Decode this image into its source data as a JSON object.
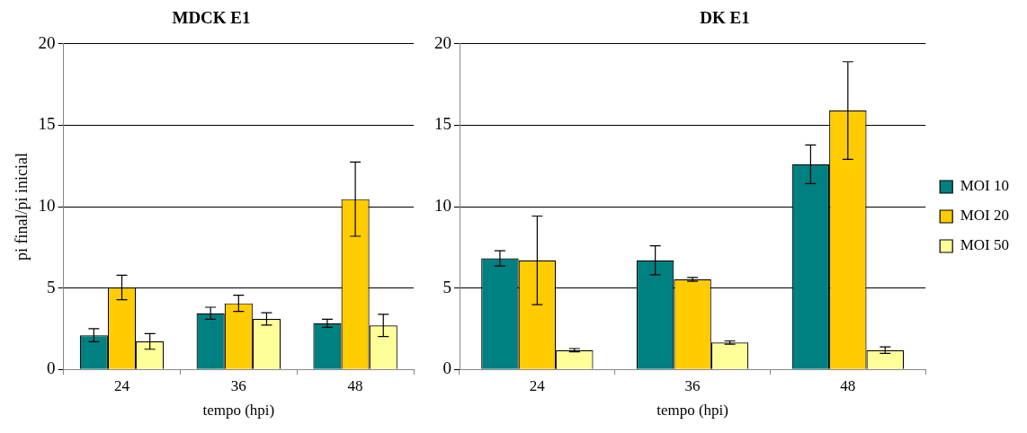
{
  "chart_data": [
    {
      "type": "bar",
      "title": "MDCK E1",
      "xlabel": "tempo (hpi)",
      "ylabel": "pi final/pi inicial",
      "categories": [
        "24",
        "36",
        "48"
      ],
      "series": [
        {
          "color": "#008080",
          "values": [
            2.1,
            3.45,
            2.83
          ],
          "errors": [
            0.4,
            0.37,
            0.25
          ]
        },
        {
          "color": "#ffcc00",
          "values": [
            5.03,
            4.06,
            10.46
          ],
          "errors": [
            0.75,
            0.5,
            2.28
          ]
        },
        {
          "color": "#ffff99",
          "values": [
            1.72,
            3.1,
            2.7
          ],
          "errors": [
            0.48,
            0.38,
            0.68
          ]
        }
      ],
      "ylim": [
        0,
        20
      ],
      "yticks": [
        0,
        5,
        10,
        15,
        20
      ],
      "grid": "y",
      "legend": false
    },
    {
      "type": "bar",
      "title": "DK E1",
      "xlabel": "tempo (hpi)",
      "categories": [
        "24",
        "36",
        "48"
      ],
      "series": [
        {
          "name": "MOI 10",
          "color": "#008080",
          "values": [
            6.82,
            6.7,
            12.6
          ],
          "errors": [
            0.47,
            0.89,
            1.19
          ]
        },
        {
          "name": "MOI 20",
          "color": "#ffcc00",
          "values": [
            6.7,
            5.53,
            15.9
          ],
          "errors": [
            2.72,
            0.12,
            3.0
          ]
        },
        {
          "name": "MOI 50",
          "color": "#ffff99",
          "values": [
            1.18,
            1.65,
            1.18
          ],
          "errors": [
            0.1,
            0.1,
            0.2
          ]
        }
      ],
      "ylim": [
        0,
        20
      ],
      "yticks": [
        0,
        5,
        10,
        15,
        20
      ],
      "grid": "y",
      "legend": "right"
    }
  ]
}
